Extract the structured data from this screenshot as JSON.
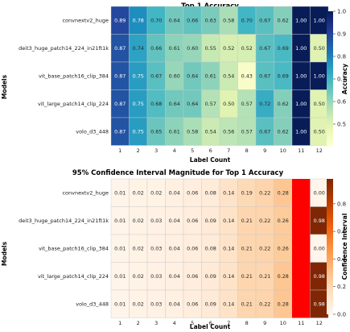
{
  "chart_data": [
    {
      "type": "heatmap",
      "title": "Top 1 Accuracy",
      "xlabel": "Label Count",
      "ylabel": "Models",
      "colorbar_label": "Accuracy",
      "colormap": "YlGnBu",
      "vmin": 0.4,
      "vmax": 1.0,
      "colorbar_ticks": [
        0.5,
        0.6,
        0.7,
        0.8,
        0.9,
        1.0
      ],
      "colorbar_tick_labels": [
        "0.5",
        "0.6",
        "0.7",
        "0.8",
        "0.9",
        "1.0"
      ],
      "x": [
        "1",
        "2",
        "3",
        "4",
        "5",
        "6",
        "7",
        "8",
        "9",
        "10",
        "11",
        "12"
      ],
      "y": [
        "convnextv2_huge",
        "deit3_huge_patch14_224_in21ft1k",
        "vit_base_patch16_clip_384",
        "vit_large_patch14_clip_224",
        "volo_d3_448"
      ],
      "values": [
        [
          0.89,
          0.78,
          0.7,
          0.64,
          0.66,
          0.63,
          0.58,
          0.7,
          0.67,
          0.62,
          1.0,
          1.0
        ],
        [
          0.87,
          0.74,
          0.66,
          0.61,
          0.6,
          0.55,
          0.52,
          0.52,
          0.67,
          0.69,
          1.0,
          0.5
        ],
        [
          0.87,
          0.75,
          0.67,
          0.6,
          0.64,
          0.61,
          0.54,
          0.43,
          0.67,
          0.69,
          1.0,
          1.0
        ],
        [
          0.87,
          0.75,
          0.68,
          0.64,
          0.64,
          0.57,
          0.5,
          0.57,
          0.72,
          0.62,
          1.0,
          0.5
        ],
        [
          0.87,
          0.75,
          0.65,
          0.61,
          0.58,
          0.54,
          0.56,
          0.57,
          0.67,
          0.62,
          1.0,
          0.5
        ]
      ],
      "value_labels": [
        [
          "0.89",
          "0.78",
          "0.70",
          "0.64",
          "0.66",
          "0.63",
          "0.58",
          "0.70",
          "0.67",
          "0.62",
          "1.00",
          "1.00"
        ],
        [
          "0.87",
          "0.74",
          "0.66",
          "0.61",
          "0.60",
          "0.55",
          "0.52",
          "0.52",
          "0.67",
          "0.69",
          "1.00",
          "0.50"
        ],
        [
          "0.87",
          "0.75",
          "0.67",
          "0.60",
          "0.64",
          "0.61",
          "0.54",
          "0.43",
          "0.67",
          "0.69",
          "1.00",
          "1.00"
        ],
        [
          "0.87",
          "0.75",
          "0.68",
          "0.64",
          "0.64",
          "0.57",
          "0.50",
          "0.57",
          "0.72",
          "0.62",
          "1.00",
          "0.50"
        ],
        [
          "0.87",
          "0.75",
          "0.65",
          "0.61",
          "0.58",
          "0.54",
          "0.56",
          "0.57",
          "0.67",
          "0.62",
          "1.00",
          "0.50"
        ]
      ]
    },
    {
      "type": "heatmap",
      "title": "95% Confidence Interval Magnitude for Top 1 Accuracy",
      "xlabel": "Label Count",
      "ylabel": "Models",
      "colorbar_label": "Confidence Interval",
      "colormap": "Oranges",
      "vmin": 0.0,
      "vmax": 0.98,
      "colorbar_ticks": [
        0.0,
        0.2,
        0.4,
        0.6,
        0.8
      ],
      "colorbar_tick_labels": [
        "0.0",
        "0.2",
        "0.4",
        "0.6",
        "0.8"
      ],
      "x": [
        "1",
        "2",
        "3",
        "4",
        "5",
        "6",
        "7",
        "8",
        "9",
        "10",
        "11",
        "12"
      ],
      "y": [
        "convnextv2_huge",
        "deit3_huge_patch14_224_in21ft1k",
        "vit_base_patch16_clip_384",
        "vit_large_patch14_clip_224",
        "volo_d3_448"
      ],
      "values": [
        [
          0.01,
          0.02,
          0.02,
          0.04,
          0.06,
          0.08,
          0.14,
          0.19,
          0.22,
          0.28,
          null,
          0.0
        ],
        [
          0.01,
          0.02,
          0.03,
          0.04,
          0.06,
          0.09,
          0.14,
          0.21,
          0.22,
          0.26,
          null,
          0.98
        ],
        [
          0.01,
          0.02,
          0.03,
          0.04,
          0.06,
          0.08,
          0.14,
          0.21,
          0.22,
          0.26,
          null,
          0.0
        ],
        [
          0.01,
          0.02,
          0.03,
          0.04,
          0.06,
          0.09,
          0.14,
          0.21,
          0.21,
          0.28,
          null,
          0.98
        ],
        [
          0.01,
          0.02,
          0.03,
          0.04,
          0.06,
          0.09,
          0.14,
          0.21,
          0.22,
          0.28,
          null,
          0.98
        ]
      ],
      "value_labels": [
        [
          "0.01",
          "0.02",
          "0.02",
          "0.04",
          "0.06",
          "0.08",
          "0.14",
          "0.19",
          "0.22",
          "0.28",
          "",
          "0.00"
        ],
        [
          "0.01",
          "0.02",
          "0.03",
          "0.04",
          "0.06",
          "0.09",
          "0.14",
          "0.21",
          "0.22",
          "0.26",
          "",
          "0.98"
        ],
        [
          "0.01",
          "0.02",
          "0.03",
          "0.04",
          "0.06",
          "0.08",
          "0.14",
          "0.21",
          "0.22",
          "0.26",
          "",
          "0.00"
        ],
        [
          "0.01",
          "0.02",
          "0.03",
          "0.04",
          "0.06",
          "0.09",
          "0.14",
          "0.21",
          "0.21",
          "0.28",
          "",
          "0.98"
        ],
        [
          "0.01",
          "0.02",
          "0.03",
          "0.04",
          "0.06",
          "0.09",
          "0.14",
          "0.21",
          "0.22",
          "0.28",
          "",
          "0.98"
        ]
      ],
      "nan_color": "#ff0000"
    }
  ]
}
